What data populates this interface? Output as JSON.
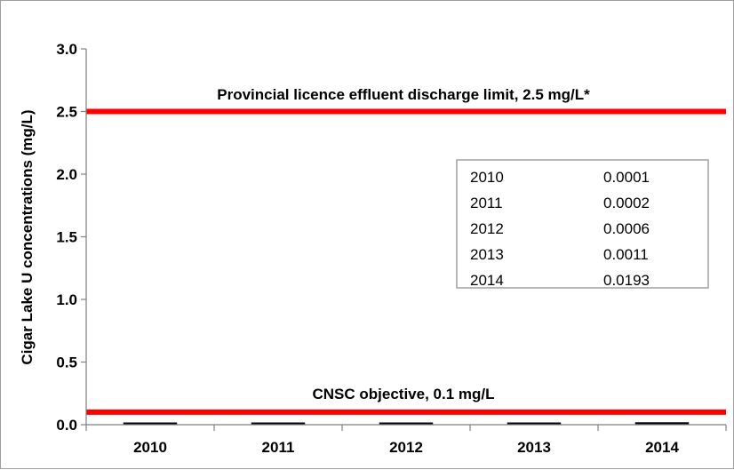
{
  "chart_data": {
    "type": "bar",
    "categories": [
      "2010",
      "2011",
      "2012",
      "2013",
      "2014"
    ],
    "values": [
      0.0001,
      0.0002,
      0.0006,
      0.0011,
      0.0193
    ],
    "ylabel": "Cigar Lake U concentrations (mg/L)",
    "xlabel": "",
    "ylim": [
      0,
      3.0
    ],
    "yticks": [
      "0.0",
      "0.5",
      "1.0",
      "1.5",
      "2.0",
      "2.5",
      "3.0"
    ],
    "grid": false,
    "reference_lines": [
      {
        "label": "Provincial licence effluent discharge limit, 2.5 mg/L*",
        "value": 2.5,
        "color": "#ff0000"
      },
      {
        "label": "CNSC objective, 0.1 mg/L",
        "value": 0.1,
        "color": "#ff0000"
      }
    ],
    "data_table": [
      {
        "year": "2010",
        "value": "0.0001"
      },
      {
        "year": "2011",
        "value": "0.0002"
      },
      {
        "year": "2012",
        "value": "0.0006"
      },
      {
        "year": "2013",
        "value": "0.0011"
      },
      {
        "year": "2014",
        "value": "0.0193"
      }
    ],
    "bar_color": "#000000",
    "line_color": "#ff0000"
  }
}
